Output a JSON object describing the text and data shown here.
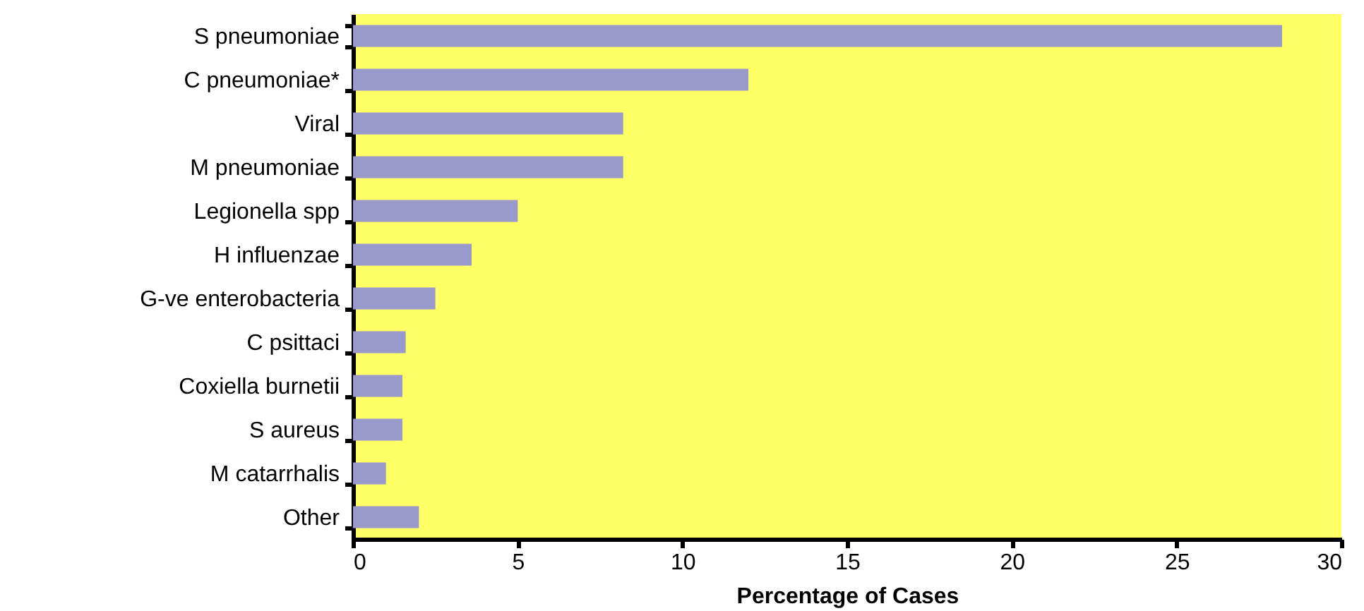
{
  "chart_data": {
    "type": "bar",
    "orientation": "horizontal",
    "xlabel": "Percentage of Cases",
    "categories": [
      "S pneumoniae",
      "C pneumoniae*",
      "Viral",
      "M pneumoniae",
      "Legionella spp",
      "H influenzae",
      "G-ve enterobacteria",
      "C psittaci",
      "Coxiella burnetii",
      "S aureus",
      "M catarrhalis",
      "Other"
    ],
    "values": [
      28.2,
      12,
      8.2,
      8.2,
      5,
      3.6,
      2.5,
      1.6,
      1.5,
      1.5,
      1,
      2
    ],
    "color": "#9999cc",
    "xlim": [
      0,
      30
    ],
    "xticks": [
      0,
      5,
      10,
      15,
      20,
      25,
      30
    ],
    "grid": false
  }
}
